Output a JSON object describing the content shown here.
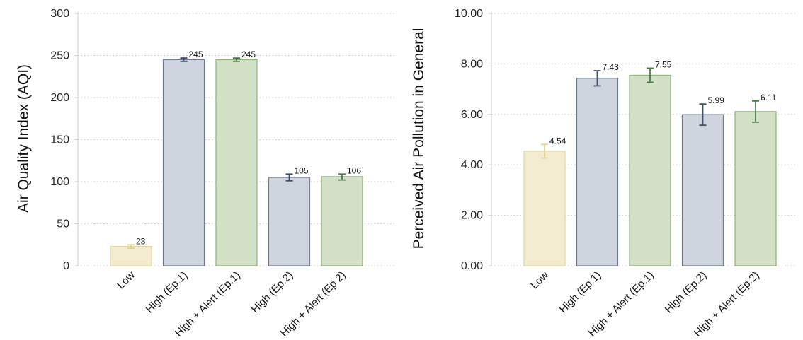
{
  "chart_data": [
    {
      "type": "bar",
      "ylabel": "Air Quality Index (AQI)",
      "categories": [
        "Low",
        "High (Ep.1)",
        "High + Alert (Ep.1)",
        "High (Ep.2)",
        "High + Alert (Ep.2)"
      ],
      "values": [
        23,
        245,
        245,
        105,
        106
      ],
      "value_labels": [
        "23",
        "245",
        "245",
        "105",
        "106"
      ],
      "error_low": [
        21,
        243,
        243,
        101,
        102
      ],
      "error_high": [
        25,
        247,
        247,
        109,
        109
      ],
      "ylim": [
        0,
        300
      ],
      "yticks": [
        0,
        50,
        100,
        150,
        200,
        250,
        300
      ],
      "ytick_labels": [
        "0",
        "50",
        "100",
        "150",
        "200",
        "250",
        "300"
      ],
      "grid": true,
      "colors": {
        "fill": [
          "#f3ecd1",
          "#cfd5de",
          "#d3e2c6",
          "#cfd5de",
          "#d3e2c6"
        ],
        "edge": [
          "#e3d7a0",
          "#6e7b90",
          "#8fb07b",
          "#6e7b90",
          "#8fb07b"
        ],
        "errorbar": [
          "#e0d38f",
          "#3f4f68",
          "#4f7c4f",
          "#3f4f68",
          "#4f7c4f"
        ]
      }
    },
    {
      "type": "bar",
      "ylabel": "Perceived Air Pollution in General",
      "categories": [
        "Low",
        "High (Ep.1)",
        "High + Alert (Ep.1)",
        "High (Ep.2)",
        "High + Alert (Ep.2)"
      ],
      "values": [
        4.54,
        7.43,
        7.55,
        5.99,
        6.11
      ],
      "value_labels": [
        "4.54",
        "7.43",
        "7.55",
        "5.99",
        "6.11"
      ],
      "error_low": [
        4.27,
        7.13,
        7.27,
        5.57,
        5.69
      ],
      "error_high": [
        4.81,
        7.73,
        7.83,
        6.41,
        6.53
      ],
      "ylim": [
        0,
        10
      ],
      "yticks": [
        0,
        2,
        4,
        6,
        8,
        10
      ],
      "ytick_labels": [
        "0.00",
        "2.00",
        "4.00",
        "6.00",
        "8.00",
        "10.00"
      ],
      "grid": true,
      "colors": {
        "fill": [
          "#f3ecd1",
          "#cfd5de",
          "#d3e2c6",
          "#cfd5de",
          "#d3e2c6"
        ],
        "edge": [
          "#e3d7a0",
          "#6e7b90",
          "#8fb07b",
          "#6e7b90",
          "#8fb07b"
        ],
        "errorbar": [
          "#e0d38f",
          "#3f4f68",
          "#4f7c4f",
          "#3f4f68",
          "#4f7c4f"
        ]
      }
    }
  ]
}
